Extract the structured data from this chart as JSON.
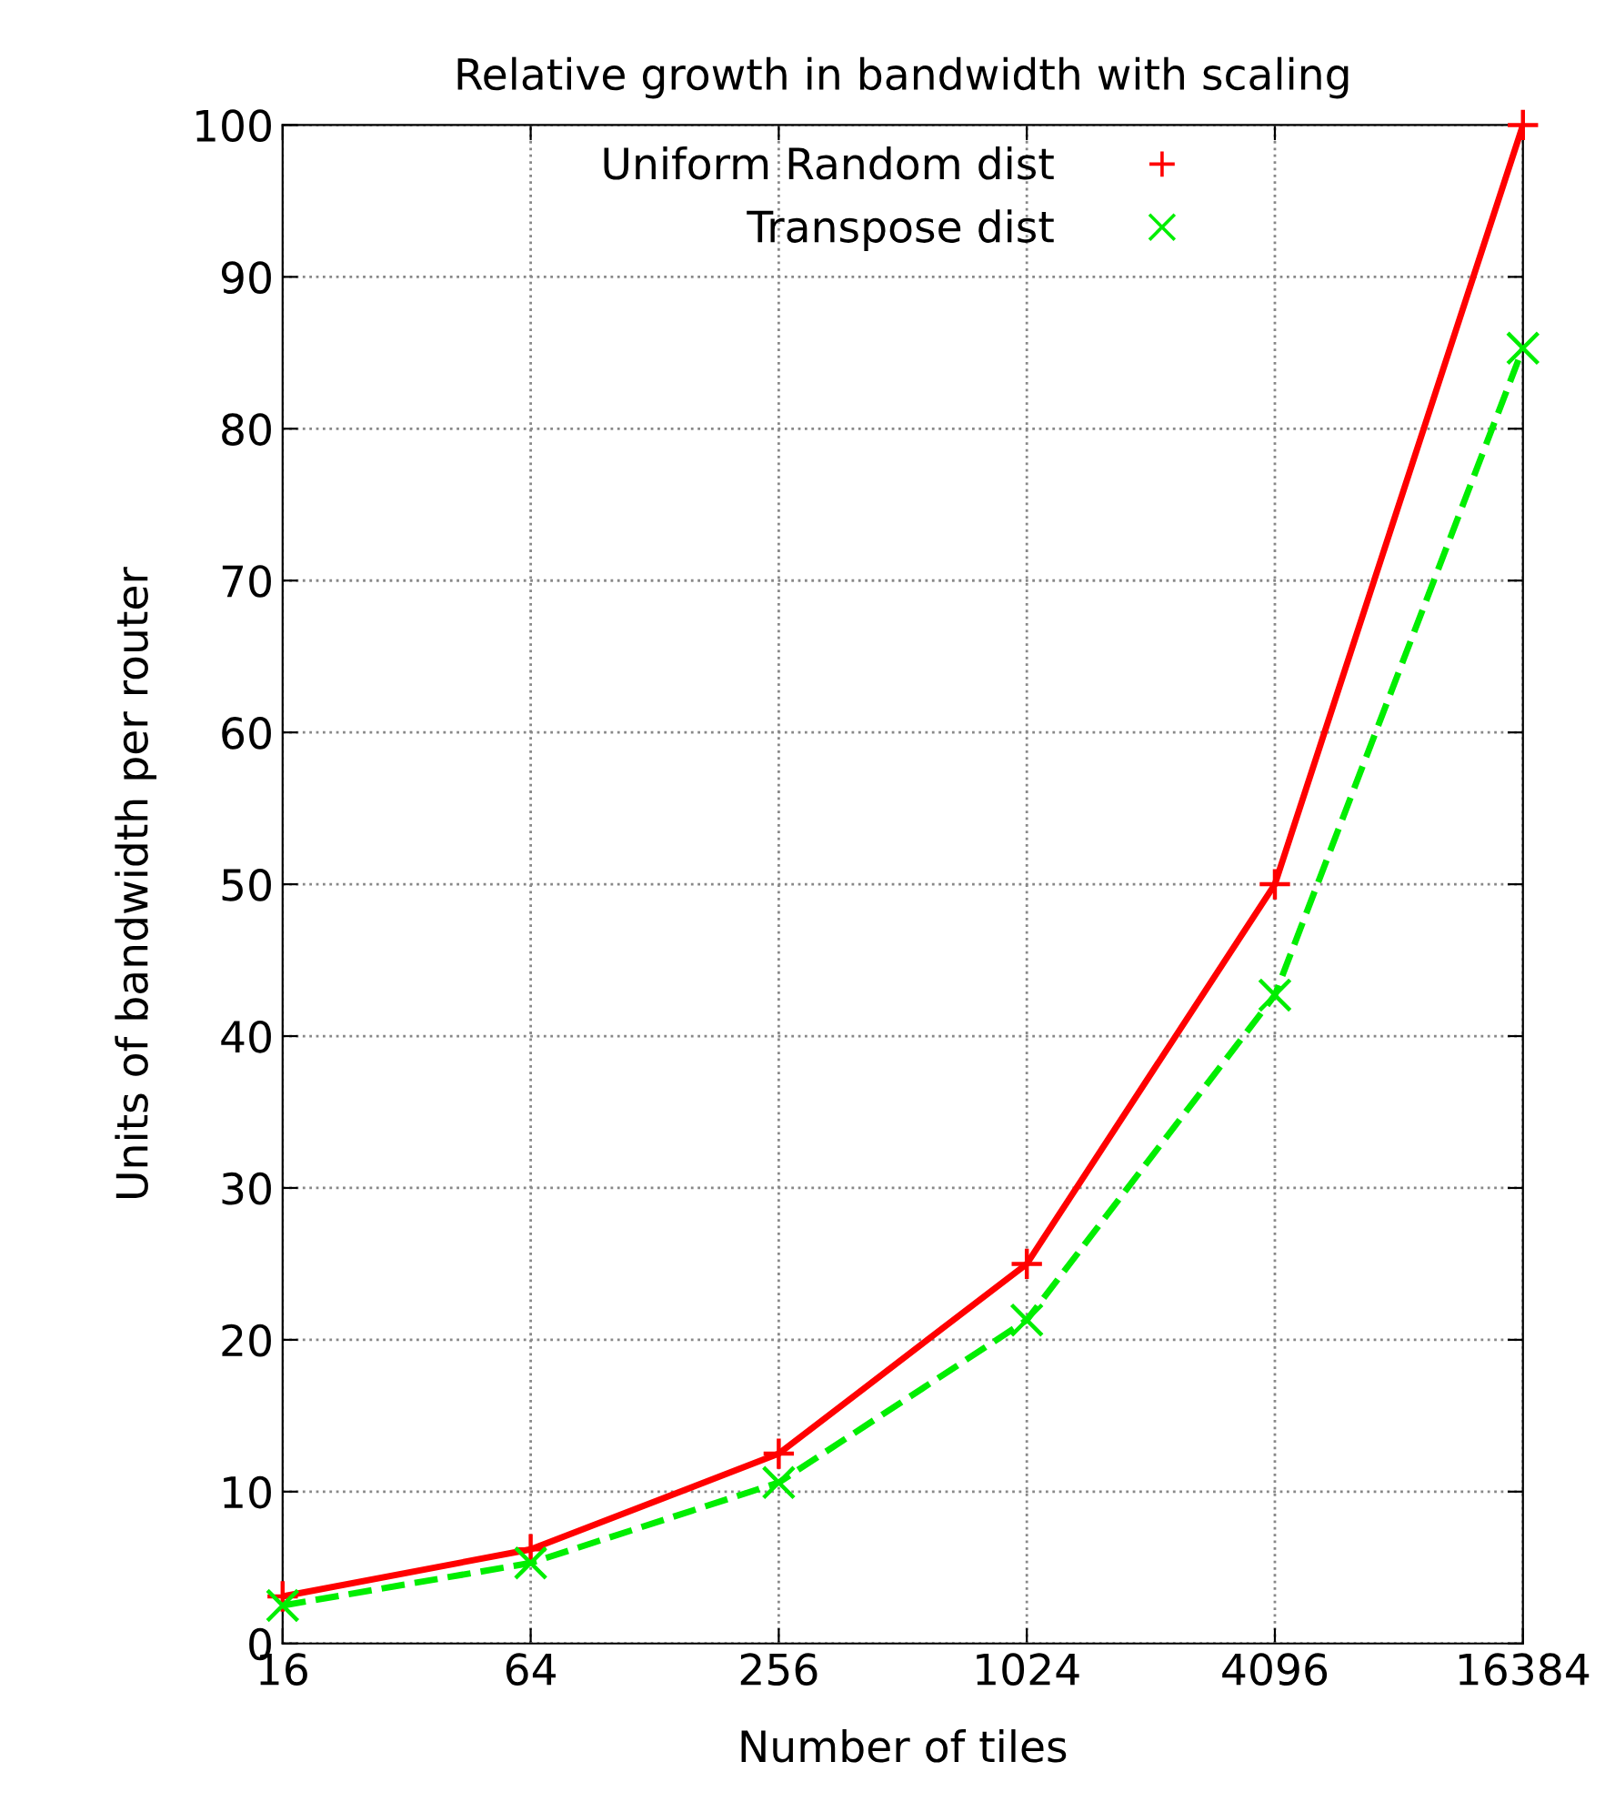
{
  "chart_data": {
    "type": "line",
    "title": "Relative growth in bandwidth with scaling",
    "xlabel": "Number of tiles",
    "ylabel": "Units of bandwidth per router",
    "x": [
      16,
      64,
      256,
      1024,
      4096,
      16384
    ],
    "series": [
      {
        "name": "Uniform Random dist",
        "color": "#ff0000",
        "values": [
          3.1,
          6.2,
          12.5,
          25,
          50,
          100
        ],
        "marker": "plus",
        "line_style": "solid"
      },
      {
        "name": "Transpose dist",
        "color": "#00ee00",
        "values": [
          2.5,
          5.3,
          10.6,
          21.3,
          42.7,
          85.3
        ],
        "marker": "cross",
        "line_style": "dashed"
      }
    ],
    "log": "x",
    "xlim": [
      16,
      16384
    ],
    "xticks": [
      16,
      64,
      256,
      1024,
      4096,
      16384
    ],
    "ylim": [
      0,
      100
    ],
    "yticks": [
      0,
      10,
      20,
      30,
      40,
      50,
      60,
      70,
      80,
      90,
      100
    ],
    "grid": true,
    "legend": "top"
  }
}
